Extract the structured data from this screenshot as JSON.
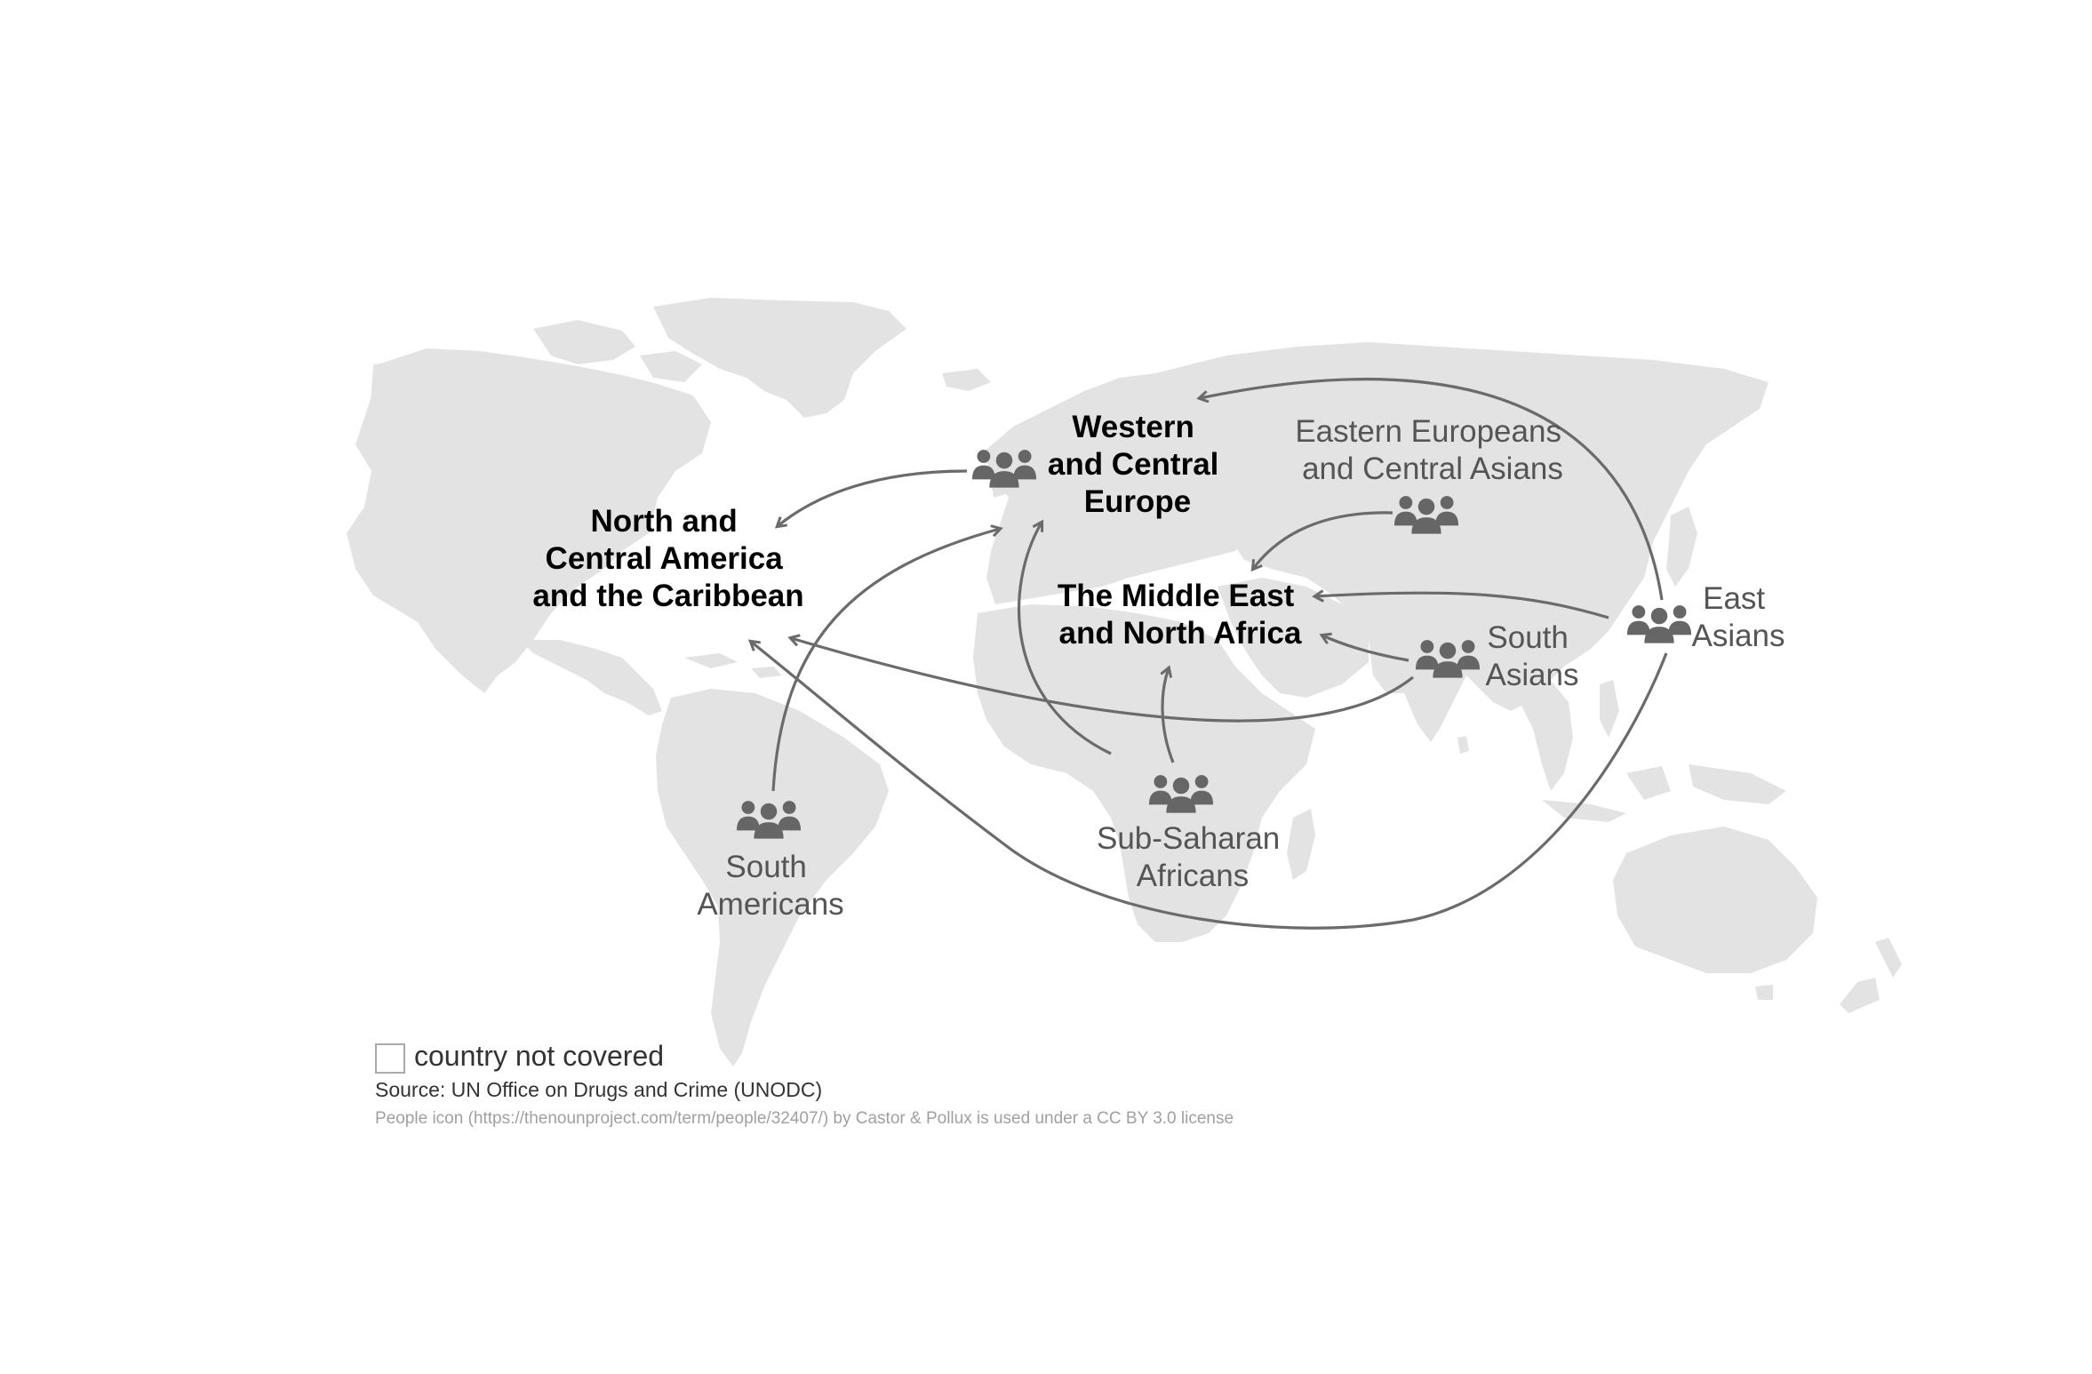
{
  "regions": {
    "western_europe": [
      "Western",
      "and Central",
      "Europe"
    ],
    "north_america": [
      "North and",
      "Central America",
      "and the Caribbean"
    ],
    "middle_east": [
      "The Middle East",
      "and North Africa"
    ]
  },
  "origin_groups": {
    "eastern_europeans": [
      "Eastern Europeans",
      "and Central Asians"
    ],
    "east_asians": [
      "East",
      "Asians"
    ],
    "south_asians": [
      "South",
      "Asians"
    ],
    "sub_saharan": [
      "Sub-Saharan",
      "Africans"
    ],
    "south_americans": [
      "South",
      "Americans"
    ]
  },
  "legend": {
    "label": "country not covered"
  },
  "source": "Source: UN Office on Drugs and Crime (UNODC)",
  "credit": "People icon (https://thenounproject.com/term/people/32407/) by Castor & Pollux is used under a CC BY 3.0 license",
  "colors": {
    "land": "#e3e3e3",
    "arrow": "#6b6b6b",
    "icon": "#666666"
  },
  "icons": {
    "people": "people-icon"
  }
}
